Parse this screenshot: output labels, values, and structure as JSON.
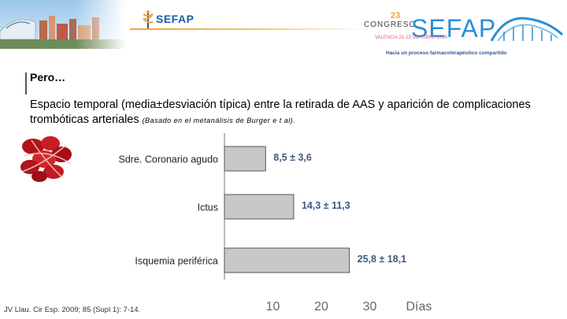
{
  "header": {
    "left_logo_word": "SEFAP",
    "congress_prefix": "CONGRESO",
    "congress_number": "23",
    "congress_name": "SEFAP",
    "congress_dates": "VALENCIA 21-23 OCTUBRE 2018",
    "congress_tagline": "Hacia un proceso farmacoterapéutico compartido",
    "colors": {
      "brand_blue": "#2a8fd6",
      "accent_orange": "#f2a23a"
    }
  },
  "slide": {
    "heading": "Pero…",
    "subtitle_main": "Espacio temporal (media±desviación típica) entre la retirada de AAS y aparición de complicaciones trombóticas arteriales",
    "subtitle_ref": "(Basado en el metanálisis de Burger e t al).",
    "citation": "JV Llau. Cir Esp. 2009; 85 (Supl 1): 7-14."
  },
  "chart_data": {
    "type": "bar",
    "orientation": "horizontal",
    "categories": [
      "Sdre. Coronario agudo",
      "Ictus",
      "Isquemia periférica"
    ],
    "values": [
      8.5,
      14.3,
      25.8
    ],
    "value_labels": [
      "8,5 ± 3,6",
      "14,3 ± 11,3",
      "25,8 ± 18,1"
    ],
    "x_ticks": [
      10,
      20,
      30
    ],
    "x_axis_label": "Días",
    "xlim": [
      0,
      30
    ],
    "grid": false,
    "colors": {
      "bar_fill": "#c8c8c8",
      "bar_stroke": "#555555",
      "label_color": "#3d5a80"
    }
  }
}
